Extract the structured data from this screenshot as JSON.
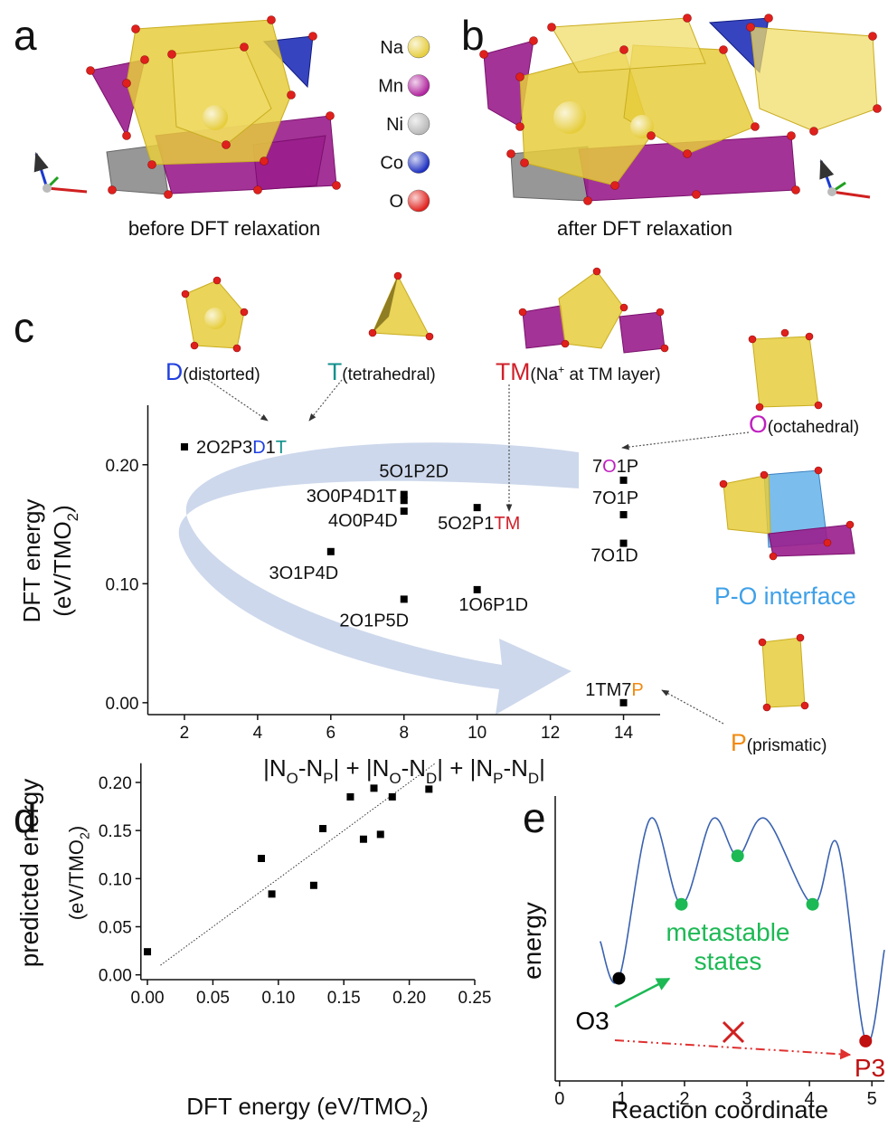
{
  "panels": [
    {
      "letter": "a",
      "caption": "before DFT relaxation"
    },
    {
      "letter": "b",
      "caption": "after DFT relaxation"
    },
    {
      "letter": "c"
    },
    {
      "letter": "d"
    },
    {
      "letter": "e"
    }
  ],
  "legend": [
    {
      "name": "Na",
      "color": "#e6cd3c"
    },
    {
      "name": "Mn",
      "color": "#b0229d"
    },
    {
      "name": "Ni",
      "color": "#b8b8b8"
    },
    {
      "name": "Co",
      "color": "#1c2ec0"
    },
    {
      "name": "O",
      "color": "#e0201c"
    }
  ],
  "annotations": [
    {
      "label": [
        {
          "text": "D",
          "color": "#2040e0"
        },
        {
          "text": "(distorted)"
        }
      ]
    },
    {
      "label": [
        {
          "text": "T",
          "color": "#11908c"
        },
        {
          "text": "(tetrahedral)"
        }
      ]
    },
    {
      "label": [
        {
          "text": "TM",
          "color": "#d0202a"
        },
        {
          "text": "(Na"
        },
        {
          "text": "+",
          "sup": true
        },
        {
          "text": " at TM layer)"
        }
      ]
    },
    {
      "label": [
        {
          "text": "O",
          "color": "#c020c0"
        },
        {
          "text": "(octahedral)"
        }
      ]
    },
    {
      "label": [
        {
          "text": "P-O interface",
          "color": "#3fa0e8"
        }
      ]
    },
    {
      "label": [
        {
          "text": "P",
          "color": "#f08a10"
        },
        {
          "text": "(prismatic)"
        }
      ]
    }
  ],
  "chart_data": [
    {
      "type": "scatter",
      "color": "#000000",
      "x_label": [
        {
          "text": "|N"
        },
        {
          "text": "O",
          "sub": true
        },
        {
          "text": "-N"
        },
        {
          "text": "P",
          "sub": true
        },
        {
          "text": "| + |N"
        },
        {
          "text": "O",
          "sub": true
        },
        {
          "text": "-N"
        },
        {
          "text": "D",
          "sub": true
        },
        {
          "text": "| + |N"
        },
        {
          "text": "P",
          "sub": true
        },
        {
          "text": "-N"
        },
        {
          "text": "D",
          "sub": true
        },
        {
          "text": "|"
        }
      ],
      "y_label": [
        [
          {
            "text": "DFT energy"
          }
        ],
        [
          {
            "text": "(eV/TMO"
          },
          {
            "text": "2",
            "sub": true
          },
          {
            "text": ")"
          }
        ]
      ],
      "x": [
        2,
        6,
        8,
        8,
        8,
        8,
        10,
        10,
        14,
        14,
        14,
        14
      ],
      "y": [
        0.215,
        0.127,
        0.175,
        0.17,
        0.161,
        0.087,
        0.164,
        0.095,
        0.187,
        0.158,
        0.134,
        0.0
      ],
      "point_labels": [
        [
          {
            "text": "2O2P3"
          },
          {
            "text": "D",
            "color": "#2040e0"
          },
          {
            "text": "1"
          },
          {
            "text": "T",
            "color": "#11908c"
          }
        ],
        [
          {
            "text": "3O1P4D"
          }
        ],
        [
          {
            "text": "5O1P2D"
          }
        ],
        [
          {
            "text": "3O0P4D1T"
          }
        ],
        [
          {
            "text": "4O0P4D"
          }
        ],
        [
          {
            "text": "2O1P5D"
          }
        ],
        [
          {
            "text": "5O2P1"
          },
          {
            "text": "TM",
            "color": "#d0202a"
          }
        ],
        [
          {
            "text": "1O6P1D"
          }
        ],
        [
          {
            "text": "7"
          },
          {
            "text": "O",
            "color": "#c020c0"
          },
          {
            "text": "1P"
          }
        ],
        [
          {
            "text": "7O1P"
          }
        ],
        [
          {
            "text": "7O1D"
          }
        ],
        [
          {
            "text": "1TM7"
          },
          {
            "text": "P",
            "color": "#f08a10"
          }
        ]
      ],
      "xlim": [
        1,
        15
      ],
      "xticks": [
        2,
        4,
        6,
        8,
        10,
        12,
        14
      ],
      "ylim": [
        -0.01,
        0.25
      ],
      "yticks": [
        {
          "value": 0,
          "label": "0.00"
        },
        {
          "value": 0.1,
          "label": "0.10"
        },
        {
          "value": 0.2,
          "label": "0.20"
        }
      ]
    },
    {
      "type": "scatter",
      "color": "#000000",
      "x_label": [
        {
          "text": "DFT energy (eV/TMO"
        },
        {
          "text": "2",
          "sub": true
        },
        {
          "text": ")"
        }
      ],
      "y_label": [
        [
          {
            "text": "predicted energy"
          }
        ],
        [
          {
            "text": "(eV/TMO"
          },
          {
            "text": "2",
            "sub": true
          },
          {
            "text": ")"
          }
        ]
      ],
      "x": [
        0.0,
        0.087,
        0.095,
        0.127,
        0.134,
        0.155,
        0.165,
        0.173,
        0.178,
        0.187,
        0.215
      ],
      "y": [
        0.024,
        0.121,
        0.084,
        0.093,
        0.152,
        0.185,
        0.141,
        0.194,
        0.146,
        0.185,
        0.193
      ],
      "fit": {
        "x": [
          0.01,
          0.22
        ],
        "y": [
          0.01,
          0.22
        ]
      },
      "xlim": [
        -0.005,
        0.25
      ],
      "xticks": [
        {
          "value": 0,
          "label": "0.00"
        },
        {
          "value": 0.05,
          "label": "0.05"
        },
        {
          "value": 0.1,
          "label": "0.10"
        },
        {
          "value": 0.15,
          "label": "0.15"
        },
        {
          "value": 0.2,
          "label": "0.20"
        },
        {
          "value": 0.25,
          "label": "0.25"
        }
      ],
      "ylim": [
        -0.005,
        0.22
      ],
      "yticks": [
        {
          "value": 0,
          "label": "0.00"
        },
        {
          "value": 0.05,
          "label": "0.05"
        },
        {
          "value": 0.1,
          "label": "0.10"
        },
        {
          "value": 0.15,
          "label": "0.15"
        },
        {
          "value": 0.2,
          "label": "0.20"
        }
      ]
    },
    {
      "type": "line",
      "color": "#3a62b0",
      "x_label": [
        {
          "text": "Reaction coordinate"
        }
      ],
      "y_label": [
        [
          {
            "text": "energy"
          }
        ]
      ],
      "x": [
        0.65,
        0.95,
        1.45,
        1.95,
        2.45,
        2.85,
        3.3,
        4.05,
        4.45,
        4.9,
        5.2
      ],
      "y": [
        4.9,
        3.6,
        9.2,
        6.2,
        9.2,
        7.9,
        9.2,
        6.2,
        8.3,
        1.4,
        4.6
      ],
      "states": {
        "x": [
          0.95,
          1.95,
          2.85,
          4.05,
          4.9
        ],
        "y": [
          3.6,
          6.2,
          7.9,
          6.2,
          1.4
        ],
        "colors": [
          "#000000",
          "#1db954",
          "#1db954",
          "#1db954",
          "#c01010"
        ]
      },
      "notes": [
        {
          "text": "metastable",
          "color": "#1db954"
        },
        {
          "text": "states",
          "color": "#1db954"
        },
        {
          "text": "O3",
          "color": "#000000"
        },
        {
          "text": "P3",
          "color": "#c01010"
        }
      ],
      "xlim": [
        -0.07,
        5.2
      ],
      "xticks": [
        0,
        1,
        2,
        3,
        4,
        5
      ],
      "ylim": [
        0,
        10
      ]
    }
  ]
}
